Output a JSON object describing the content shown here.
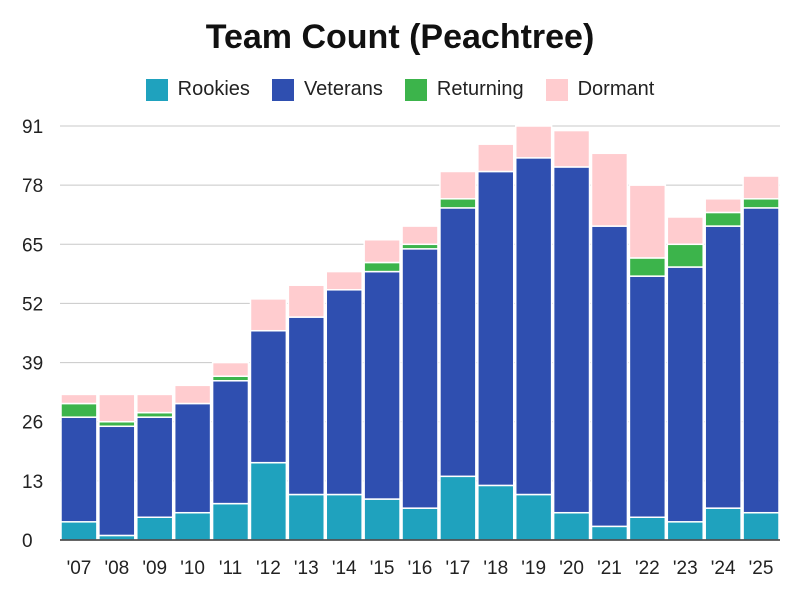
{
  "chart_data": {
    "type": "bar",
    "stacked": true,
    "title": "Team Count (Peachtree)",
    "xlabel": "",
    "ylabel": "",
    "categories": [
      "'07",
      "'08",
      "'09",
      "'10",
      "'11",
      "'12",
      "'13",
      "'14",
      "'15",
      "'16",
      "'17",
      "'18",
      "'19",
      "'20",
      "'21",
      "'22",
      "'23",
      "'24",
      "'25"
    ],
    "series": [
      {
        "name": "Rookies",
        "color": "#1fa2be",
        "values": [
          4,
          1,
          5,
          6,
          8,
          17,
          10,
          10,
          9,
          7,
          14,
          12,
          10,
          6,
          3,
          5,
          4,
          7,
          6
        ]
      },
      {
        "name": "Veterans",
        "color": "#2f4fb0",
        "values": [
          23,
          24,
          22,
          24,
          27,
          29,
          39,
          45,
          50,
          57,
          59,
          69,
          74,
          76,
          66,
          53,
          56,
          62,
          67
        ]
      },
      {
        "name": "Returning",
        "color": "#3cb44b",
        "values": [
          3,
          1,
          1,
          0,
          1,
          0,
          0,
          0,
          2,
          1,
          2,
          0,
          0,
          0,
          0,
          4,
          5,
          3,
          2
        ]
      },
      {
        "name": "Dormant",
        "color": "#ffcccf",
        "values": [
          2,
          6,
          4,
          4,
          3,
          7,
          7,
          4,
          5,
          4,
          6,
          6,
          7,
          8,
          16,
          16,
          6,
          3,
          5
        ]
      }
    ],
    "ylim": [
      0,
      91
    ],
    "yticks": [
      0,
      13,
      26,
      39,
      52,
      65,
      78,
      91
    ],
    "grid": true,
    "legend_position": "top"
  }
}
